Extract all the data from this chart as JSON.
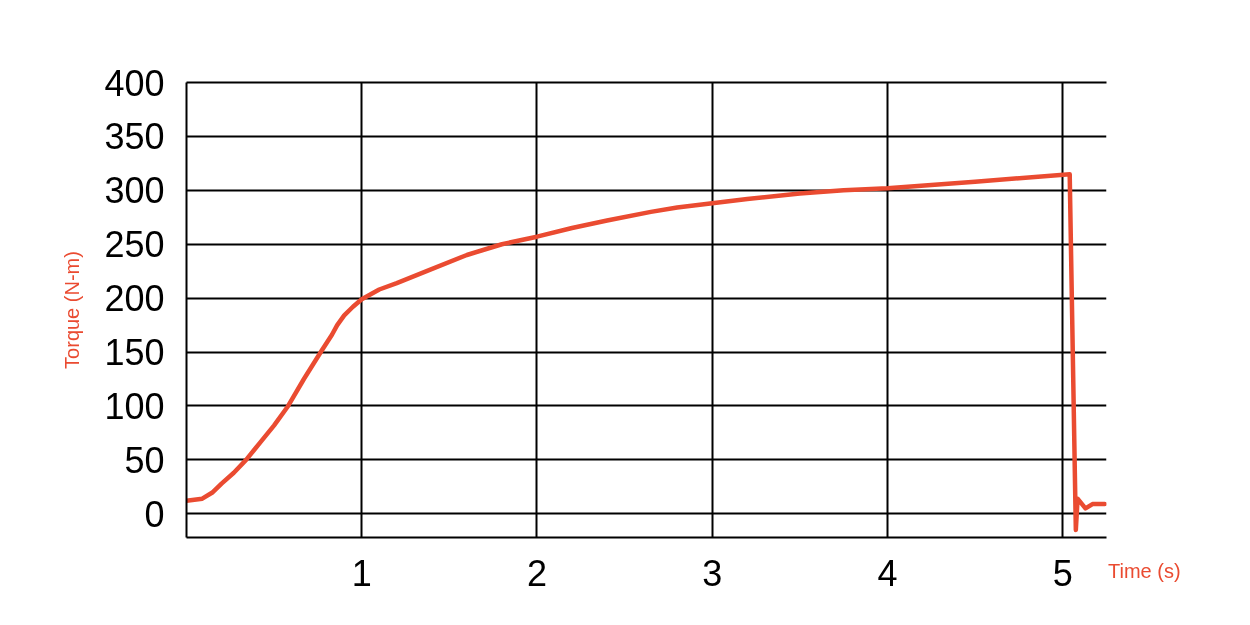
{
  "chart_data": {
    "type": "line",
    "xlabel": "Time (s)",
    "ylabel": "Torque (N-m)",
    "x": [
      0.0,
      0.09,
      0.15,
      0.2,
      0.27,
      0.34,
      0.42,
      0.5,
      0.58,
      0.67,
      0.77,
      0.83,
      0.86,
      0.9,
      0.95,
      1.0,
      1.1,
      1.2,
      1.37,
      1.6,
      1.8,
      2.0,
      2.2,
      2.4,
      2.65,
      2.8,
      3.0,
      3.2,
      3.5,
      3.75,
      4.0,
      4.5,
      5.04,
      5.075,
      5.085,
      5.13,
      5.17,
      5.24
    ],
    "series": [
      {
        "color": "#ea4b31",
        "values": [
          12,
          14,
          20,
          28,
          38,
          50,
          66,
          82,
          100,
          125,
          151,
          166,
          175,
          184,
          192,
          199,
          208,
          214,
          225,
          240,
          250,
          257,
          265,
          272,
          280,
          284,
          288,
          292,
          297,
          300,
          302,
          308,
          315,
          -15,
          14,
          5,
          9,
          9
        ]
      }
    ],
    "xlim": [
      0,
      5.25
    ],
    "ylim": [
      -22,
      400
    ],
    "xticks": [
      1,
      2,
      3,
      4,
      5
    ],
    "yticks": [
      0,
      50,
      100,
      150,
      200,
      250,
      300,
      350,
      400
    ],
    "grid": true
  }
}
